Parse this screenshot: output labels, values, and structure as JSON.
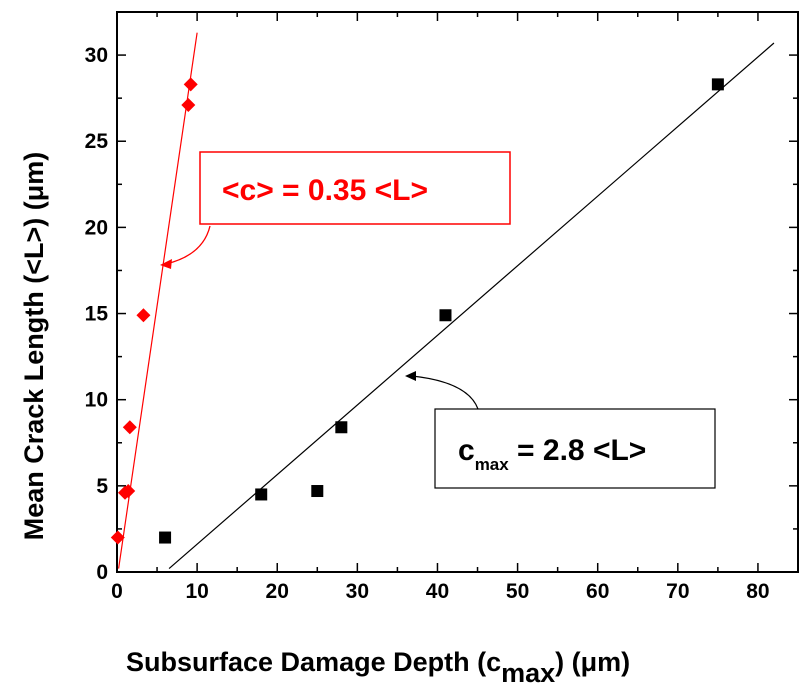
{
  "chart_data": {
    "type": "scatter",
    "xlabel": {
      "main": "Subsurface Damage Depth (c",
      "sub": "max",
      "unit": ") (μm)"
    },
    "ylabel": "Mean Crack Length (<L>) (μm)",
    "xlim": [
      0,
      85
    ],
    "ylim": [
      0,
      32.5
    ],
    "xticks": [
      0,
      10,
      20,
      30,
      40,
      50,
      60,
      70,
      80
    ],
    "yticks": [
      0,
      5,
      10,
      15,
      20,
      25,
      30
    ],
    "grid": false,
    "series": [
      {
        "color": "#ff0000",
        "marker": "diamond",
        "points": [
          [
            0.1,
            2.0
          ],
          [
            1.0,
            4.6
          ],
          [
            1.4,
            4.7
          ],
          [
            1.6,
            8.4
          ],
          [
            3.3,
            14.9
          ],
          [
            8.9,
            27.1
          ],
          [
            9.2,
            28.3
          ]
        ],
        "fit": {
          "x": [
            0.2,
            10.0
          ],
          "y": [
            0.2,
            31.3
          ]
        }
      },
      {
        "color": "#000000",
        "marker": "square",
        "points": [
          [
            6,
            2.0
          ],
          [
            18,
            4.5
          ],
          [
            25,
            4.7
          ],
          [
            28,
            8.4
          ],
          [
            41,
            14.9
          ],
          [
            75,
            28.3
          ]
        ],
        "fit": {
          "x": [
            6.5,
            82.0
          ],
          "y": [
            0.2,
            30.7
          ]
        }
      }
    ],
    "annotations": [
      {
        "text": "<c> = 0.35 <L>",
        "color": "#ff0000"
      },
      {
        "text_main": "c",
        "text_sub": "max",
        "text_rest": " = 2.8 <L>",
        "color": "#000000"
      }
    ]
  }
}
